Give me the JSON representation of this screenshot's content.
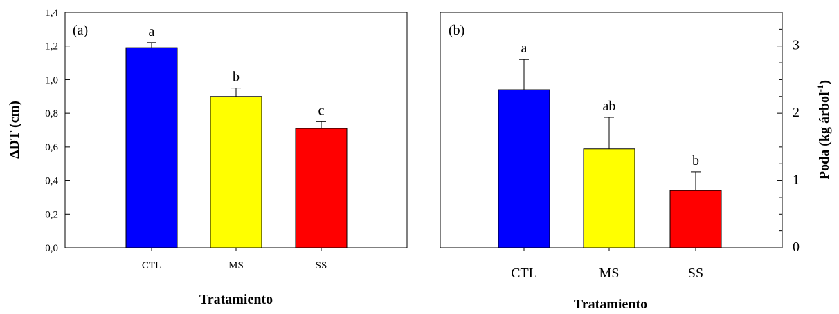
{
  "chart_data": [
    {
      "type": "bar",
      "panel_label": "(a)",
      "categories": [
        "CTL",
        "MS",
        "SS"
      ],
      "values": [
        1.19,
        0.9,
        0.71
      ],
      "errors": [
        0.03,
        0.05,
        0.04
      ],
      "significance": [
        "a",
        "b",
        "c"
      ],
      "colors": [
        "#0000ff",
        "#ffff00",
        "#ff0000"
      ],
      "xlabel": "Tratamiento",
      "ylabel": "ΔDT (cm)",
      "ylim": [
        0,
        1.4
      ],
      "yticks": [
        "0,0",
        "0,2",
        "0,4",
        "0,6",
        "0,8",
        "1,0",
        "1,2",
        "1,4"
      ],
      "y_axis_side": "left",
      "grid": false
    },
    {
      "type": "bar",
      "panel_label": "(b)",
      "categories": [
        "CTL",
        "MS",
        "SS"
      ],
      "values": [
        2.35,
        1.47,
        0.85
      ],
      "errors": [
        0.45,
        0.47,
        0.28
      ],
      "significance": [
        "a",
        "ab",
        "b"
      ],
      "colors": [
        "#0000ff",
        "#ffff00",
        "#ff0000"
      ],
      "xlabel": "Tratamiento",
      "ylabel": "Poda (kg árbol",
      "ylabel_sup": "-1",
      "ylabel_close": ")",
      "ylim": [
        0,
        3.5
      ],
      "yticks": [
        "0",
        "1",
        "2",
        "3"
      ],
      "y_axis_side": "right",
      "grid": false
    }
  ]
}
